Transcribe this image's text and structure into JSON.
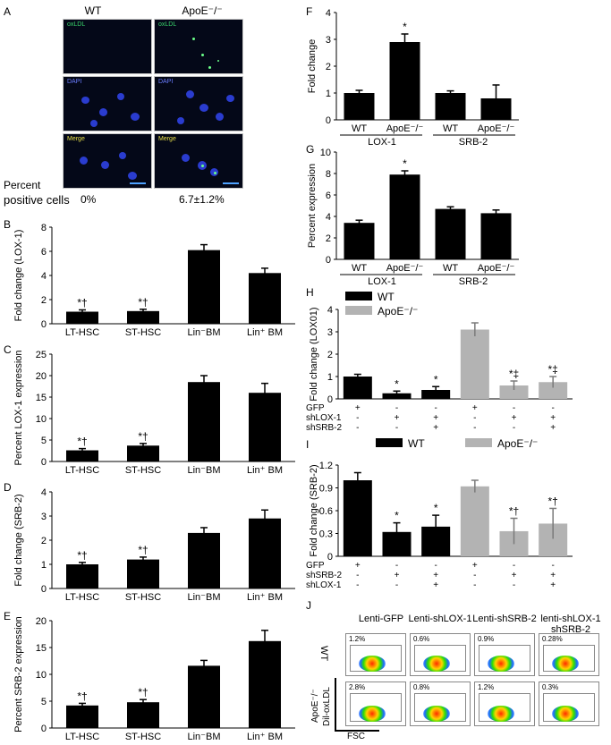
{
  "panel_letters": {
    "A": "A",
    "B": "B",
    "C": "C",
    "D": "D",
    "E": "E",
    "F": "F",
    "G": "G",
    "H": "H",
    "I": "I",
    "J": "J"
  },
  "panelA": {
    "col_wt": "WT",
    "col_apoe": "ApoE⁻/⁻",
    "row_labels": [
      "oxLDL",
      "DAPI",
      "Merge"
    ],
    "percent_title_1": "Percent",
    "percent_title_2": "positive cells",
    "percent_wt": "0%",
    "percent_apoe": "6.7±1.2%",
    "colors": {
      "oxldl": "#39d36b",
      "dapi": "#2a3ccf",
      "merge_text": "#e8e04a",
      "label_blue": "#6a7cff"
    }
  },
  "chart_data": [
    {
      "id": "B",
      "type": "bar",
      "ylabel": "Fold change (LOX-1)",
      "ylim": [
        0,
        8
      ],
      "yticks": [
        "0",
        "2",
        "4",
        "6",
        "8"
      ],
      "categories": [
        "LT-HSC",
        "ST-HSC",
        "Lin⁻BM",
        "Lin⁺ BM"
      ],
      "values": [
        1.0,
        1.05,
        6.1,
        4.2
      ],
      "errors": [
        0.15,
        0.15,
        0.45,
        0.4
      ],
      "annotations": [
        "*†",
        "*†",
        "",
        ""
      ]
    },
    {
      "id": "C",
      "type": "bar",
      "ylabel": "Percent LOX-1 expression",
      "ylim": [
        0,
        25
      ],
      "yticks": [
        "0",
        "5",
        "10",
        "15",
        "20",
        "25"
      ],
      "categories": [
        "LT-HSC",
        "ST-HSC",
        "Lin⁻BM",
        "Lin⁺ BM"
      ],
      "values": [
        2.6,
        3.7,
        18.5,
        16.0
      ],
      "errors": [
        0.4,
        0.5,
        1.5,
        2.2
      ],
      "annotations": [
        "*†",
        "*†",
        "",
        ""
      ]
    },
    {
      "id": "D",
      "type": "bar",
      "ylabel": "Fold change (SRB-2)",
      "ylim": [
        0,
        4
      ],
      "yticks": [
        "0",
        "1",
        "2",
        "3",
        "4"
      ],
      "categories": [
        "LT-HSC",
        "ST-HSC",
        "Lin⁻BM",
        "Lin⁺ BM"
      ],
      "values": [
        1.0,
        1.2,
        2.3,
        2.9
      ],
      "errors": [
        0.08,
        0.1,
        0.22,
        0.35
      ],
      "annotations": [
        "*†",
        "*†",
        "",
        ""
      ]
    },
    {
      "id": "E",
      "type": "bar",
      "ylabel": "Percent SRB-2 expression",
      "ylim": [
        0,
        20
      ],
      "yticks": [
        "0",
        "5",
        "10",
        "15",
        "20"
      ],
      "categories": [
        "LT-HSC",
        "ST-HSC",
        "Lin⁻BM",
        "Lin⁺ BM"
      ],
      "values": [
        4.2,
        4.8,
        11.6,
        16.2
      ],
      "errors": [
        0.4,
        0.5,
        1.0,
        2.0
      ],
      "annotations": [
        "*†",
        "*†",
        "",
        ""
      ]
    },
    {
      "id": "F",
      "type": "bar",
      "ylabel": "Fold change",
      "ylim": [
        0,
        4
      ],
      "yticks": [
        "0",
        "1",
        "2",
        "3",
        "4"
      ],
      "categories": [
        "WT",
        "ApoE⁻/⁻",
        "WT",
        "ApoE⁻/⁻"
      ],
      "groups": [
        "LOX-1",
        "SRB-2"
      ],
      "values": [
        1.0,
        2.9,
        1.0,
        0.8
      ],
      "errors": [
        0.1,
        0.3,
        0.08,
        0.5
      ],
      "annotations": [
        "",
        "*",
        "",
        ""
      ]
    },
    {
      "id": "G",
      "type": "bar",
      "ylabel": "Percent expression",
      "ylim": [
        0,
        10
      ],
      "yticks": [
        "0",
        "2",
        "4",
        "6",
        "8",
        "10"
      ],
      "categories": [
        "WT",
        "ApoE⁻/⁻",
        "WT",
        "ApoE⁻/⁻"
      ],
      "groups": [
        "LOX-1",
        "SRB-2"
      ],
      "values": [
        3.4,
        7.9,
        4.7,
        4.3
      ],
      "errors": [
        0.25,
        0.35,
        0.2,
        0.3
      ],
      "annotations": [
        "",
        "*",
        "",
        ""
      ]
    },
    {
      "id": "H",
      "type": "bar",
      "ylabel": "Fold change (LOX01)",
      "ylim": [
        0,
        4
      ],
      "yticks": [
        "0",
        "1",
        "2",
        "3",
        "4"
      ],
      "legend": [
        "WT",
        "ApoE⁻/⁻"
      ],
      "values": [
        1.0,
        0.25,
        0.4,
        3.1,
        0.6,
        0.75
      ],
      "errors": [
        0.1,
        0.1,
        0.15,
        0.3,
        0.2,
        0.25
      ],
      "annotations": [
        "",
        "*",
        "*",
        "",
        "*‡",
        "*‡"
      ],
      "bar_series": [
        0,
        0,
        0,
        1,
        1,
        1
      ],
      "treatment_rows": [
        {
          "label": "GFP",
          "marks": [
            "+",
            "-",
            "-",
            "+",
            "-",
            "-"
          ]
        },
        {
          "label": "shLOX-1",
          "marks": [
            "-",
            "+",
            "+",
            "-",
            "+",
            "+"
          ]
        },
        {
          "label": "shSRB-2",
          "marks": [
            "-",
            "-",
            "+",
            "-",
            "-",
            "+"
          ]
        }
      ]
    },
    {
      "id": "I",
      "type": "bar",
      "ylabel": "Fold change (SRB-2)",
      "ylim": [
        0,
        1.2
      ],
      "yticks": [
        "0",
        "0.3",
        "0.6",
        "0.9",
        "1.2"
      ],
      "legend": [
        "WT",
        "ApoE⁻/⁻"
      ],
      "values": [
        1.0,
        0.32,
        0.39,
        0.92,
        0.33,
        0.43
      ],
      "errors": [
        0.1,
        0.12,
        0.15,
        0.08,
        0.17,
        0.2
      ],
      "annotations": [
        "",
        "*",
        "*",
        "",
        "*†",
        "*†"
      ],
      "bar_series": [
        0,
        0,
        0,
        1,
        1,
        1
      ],
      "treatment_rows": [
        {
          "label": "GFP",
          "marks": [
            "+",
            "-",
            "-",
            "+",
            "-",
            "-"
          ]
        },
        {
          "label": "shSRB-2",
          "marks": [
            "-",
            "+",
            "+",
            "-",
            "+",
            "+"
          ]
        },
        {
          "label": "shLOX-1",
          "marks": [
            "-",
            "-",
            "+",
            "-",
            "-",
            "+"
          ]
        }
      ]
    }
  ],
  "series_colors": {
    "wt": "#000000",
    "apoe": "#b3b3b3"
  },
  "panelJ": {
    "col_headers": [
      "Lenti-GFP",
      "Lenti-shLOX-1",
      "Lenti-shSRB-2",
      "lenti-shLOX-1"
    ],
    "col_header_line2": "shSRB-2",
    "row_wt": "WT",
    "row_apoe": "ApoE⁻/⁻",
    "y_axis": "Dil-oxLDL",
    "x_axis": "FSC",
    "wt_percents": [
      "1.2%",
      "0.6%",
      "0.9%",
      "0.28%"
    ],
    "apoe_percents": [
      "2.8%",
      "0.8%",
      "1.2%",
      "0.3%"
    ]
  }
}
